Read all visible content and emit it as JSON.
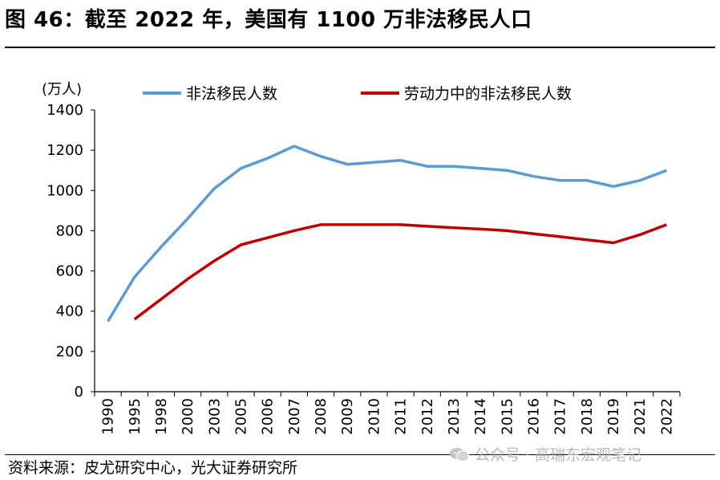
{
  "title": "图 46：截至 2022 年，美国有 1100 万非法移民人口",
  "source": "资料来源：皮尤研究中心，光大证券研究所",
  "watermark": "公众号 · 高瑞东宏观笔记",
  "colors": {
    "series1": "#5b9bd5",
    "series2": "#c00000"
  },
  "chart_data": {
    "type": "line",
    "title": "图 46：截至 2022 年，美国有 1100 万非法移民人口",
    "ylabel": "(万人)",
    "xlabel": "",
    "ylim": [
      0,
      1400
    ],
    "yticks": [
      "0",
      "200",
      "400",
      "600",
      "800",
      "1000",
      "1200",
      "1400"
    ],
    "categories": [
      "1990",
      "1995",
      "1998",
      "2000",
      "2003",
      "2005",
      "2006",
      "2007",
      "2008",
      "2009",
      "2010",
      "2011",
      "2012",
      "2013",
      "2014",
      "2015",
      "2016",
      "2017",
      "2018",
      "2019",
      "2021",
      "2022"
    ],
    "series": [
      {
        "name": "非法移民人数",
        "values": [
          350,
          570,
          720,
          860,
          1010,
          1110,
          1160,
          1220,
          1170,
          1130,
          1140,
          1150,
          1120,
          1120,
          1110,
          1100,
          1070,
          1050,
          1050,
          1020,
          1050,
          1100
        ]
      },
      {
        "name": "劳动力中的非法移民人数",
        "values": [
          null,
          360,
          460,
          560,
          650,
          730,
          765,
          800,
          830,
          830,
          830,
          830,
          822,
          815,
          808,
          800,
          785,
          770,
          755,
          740,
          780,
          830
        ]
      }
    ],
    "legend_position": "top",
    "grid": false
  }
}
